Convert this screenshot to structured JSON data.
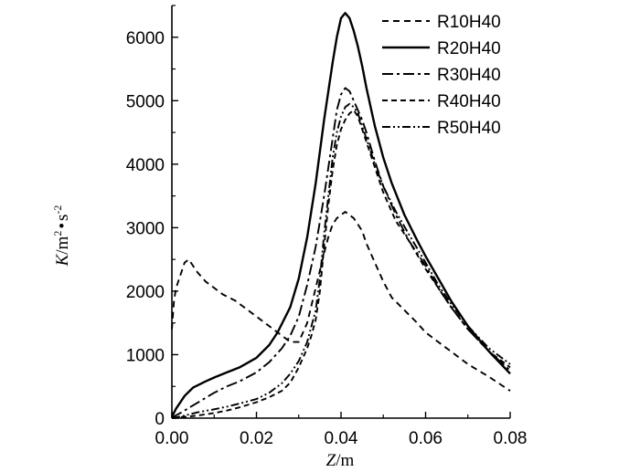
{
  "chart_data": {
    "type": "line",
    "xlabel": {
      "var": "Z",
      "unit": "/m"
    },
    "ylabel": {
      "var": "K",
      "unit_a": "/m",
      "sup_a": "2",
      "dot": "•",
      "unit_b": "s",
      "sup_b": "-2"
    },
    "xlim": [
      0,
      0.08
    ],
    "ylim": [
      0,
      6500
    ],
    "xticks": [
      0.0,
      0.02,
      0.04,
      0.06,
      0.08
    ],
    "xtick_labels": [
      "0.00",
      "0.02",
      "0.04",
      "0.06",
      "0.08"
    ],
    "yticks": [
      0,
      1000,
      2000,
      3000,
      4000,
      5000,
      6000
    ],
    "ytick_labels": [
      "0",
      "1000",
      "2000",
      "3000",
      "4000",
      "5000",
      "6000"
    ],
    "legend_position": "top-right",
    "series": [
      {
        "name": "R10H40",
        "dash": "7,5",
        "x": [
          0.0,
          0.0005,
          0.001,
          0.002,
          0.003,
          0.004,
          0.005,
          0.006,
          0.008,
          0.01,
          0.012,
          0.015,
          0.018,
          0.02,
          0.022,
          0.025,
          0.028,
          0.03,
          0.032,
          0.034,
          0.036,
          0.037,
          0.038,
          0.039,
          0.04,
          0.041,
          0.042,
          0.043,
          0.044,
          0.045,
          0.046,
          0.048,
          0.05,
          0.052,
          0.055,
          0.058,
          0.06,
          0.063,
          0.066,
          0.07,
          0.075,
          0.08
        ],
        "y": [
          1400,
          1850,
          2050,
          2250,
          2450,
          2500,
          2400,
          2300,
          2150,
          2050,
          1950,
          1850,
          1700,
          1600,
          1500,
          1350,
          1200,
          1200,
          1500,
          2050,
          2600,
          2850,
          3050,
          3150,
          3200,
          3250,
          3200,
          3150,
          3050,
          2950,
          2750,
          2450,
          2150,
          1900,
          1700,
          1500,
          1350,
          1200,
          1050,
          850,
          650,
          430
        ]
      },
      {
        "name": "R20H40",
        "dash": "",
        "x": [
          0.0,
          0.001,
          0.003,
          0.005,
          0.008,
          0.01,
          0.013,
          0.016,
          0.02,
          0.023,
          0.025,
          0.028,
          0.03,
          0.032,
          0.034,
          0.036,
          0.038,
          0.039,
          0.04,
          0.041,
          0.042,
          0.043,
          0.044,
          0.045,
          0.046,
          0.048,
          0.05,
          0.052,
          0.055,
          0.058,
          0.06,
          0.063,
          0.066,
          0.07,
          0.075,
          0.08
        ],
        "y": [
          20,
          150,
          350,
          480,
          580,
          640,
          720,
          800,
          950,
          1150,
          1350,
          1750,
          2200,
          2850,
          3700,
          4700,
          5600,
          6000,
          6300,
          6380,
          6300,
          6100,
          5850,
          5550,
          5200,
          4600,
          4100,
          3700,
          3200,
          2800,
          2550,
          2200,
          1850,
          1450,
          1050,
          700
        ]
      },
      {
        "name": "R30H40",
        "dash": "12,4,3,4",
        "x": [
          0.0,
          0.002,
          0.005,
          0.008,
          0.01,
          0.013,
          0.016,
          0.02,
          0.023,
          0.026,
          0.028,
          0.03,
          0.032,
          0.034,
          0.036,
          0.038,
          0.039,
          0.04,
          0.041,
          0.042,
          0.043,
          0.044,
          0.045,
          0.046,
          0.048,
          0.05,
          0.053,
          0.056,
          0.06,
          0.063,
          0.066,
          0.07,
          0.075,
          0.08
        ],
        "y": [
          10,
          80,
          200,
          320,
          400,
          500,
          580,
          720,
          880,
          1100,
          1300,
          1600,
          2100,
          2700,
          3500,
          4400,
          4850,
          5100,
          5200,
          5150,
          5000,
          4850,
          4700,
          4500,
          4050,
          3650,
          3200,
          2800,
          2400,
          2050,
          1750,
          1400,
          1050,
          750
        ]
      },
      {
        "name": "R40H40",
        "dash": "6,4",
        "x": [
          0.0,
          0.003,
          0.006,
          0.01,
          0.013,
          0.016,
          0.02,
          0.023,
          0.026,
          0.028,
          0.03,
          0.032,
          0.033,
          0.034,
          0.035,
          0.036,
          0.037,
          0.038,
          0.039,
          0.04,
          0.041,
          0.042,
          0.043,
          0.044,
          0.045,
          0.046,
          0.048,
          0.05,
          0.053,
          0.056,
          0.06,
          0.063,
          0.066,
          0.07,
          0.075,
          0.08
        ],
        "y": [
          0,
          20,
          40,
          80,
          120,
          170,
          250,
          330,
          430,
          560,
          800,
          1100,
          1300,
          1550,
          2000,
          2700,
          3350,
          3900,
          4300,
          4550,
          4700,
          4800,
          4850,
          4750,
          4550,
          4350,
          3950,
          3550,
          3100,
          2800,
          2350,
          2050,
          1750,
          1400,
          1050,
          800
        ]
      },
      {
        "name": "R50H40",
        "dash": "9,3,2,3,2,3",
        "x": [
          0.0,
          0.003,
          0.006,
          0.01,
          0.013,
          0.016,
          0.02,
          0.023,
          0.026,
          0.028,
          0.03,
          0.032,
          0.034,
          0.035,
          0.036,
          0.037,
          0.038,
          0.039,
          0.04,
          0.041,
          0.042,
          0.043,
          0.044,
          0.045,
          0.046,
          0.048,
          0.05,
          0.053,
          0.056,
          0.06,
          0.063,
          0.066,
          0.07,
          0.075,
          0.08
        ],
        "y": [
          0,
          40,
          90,
          140,
          180,
          230,
          300,
          400,
          550,
          700,
          900,
          1200,
          1700,
          2200,
          2900,
          3500,
          4100,
          4500,
          4750,
          4900,
          4950,
          4900,
          4800,
          4600,
          4400,
          4000,
          3650,
          3250,
          2900,
          2450,
          2100,
          1800,
          1450,
          1100,
          850
        ]
      }
    ]
  }
}
